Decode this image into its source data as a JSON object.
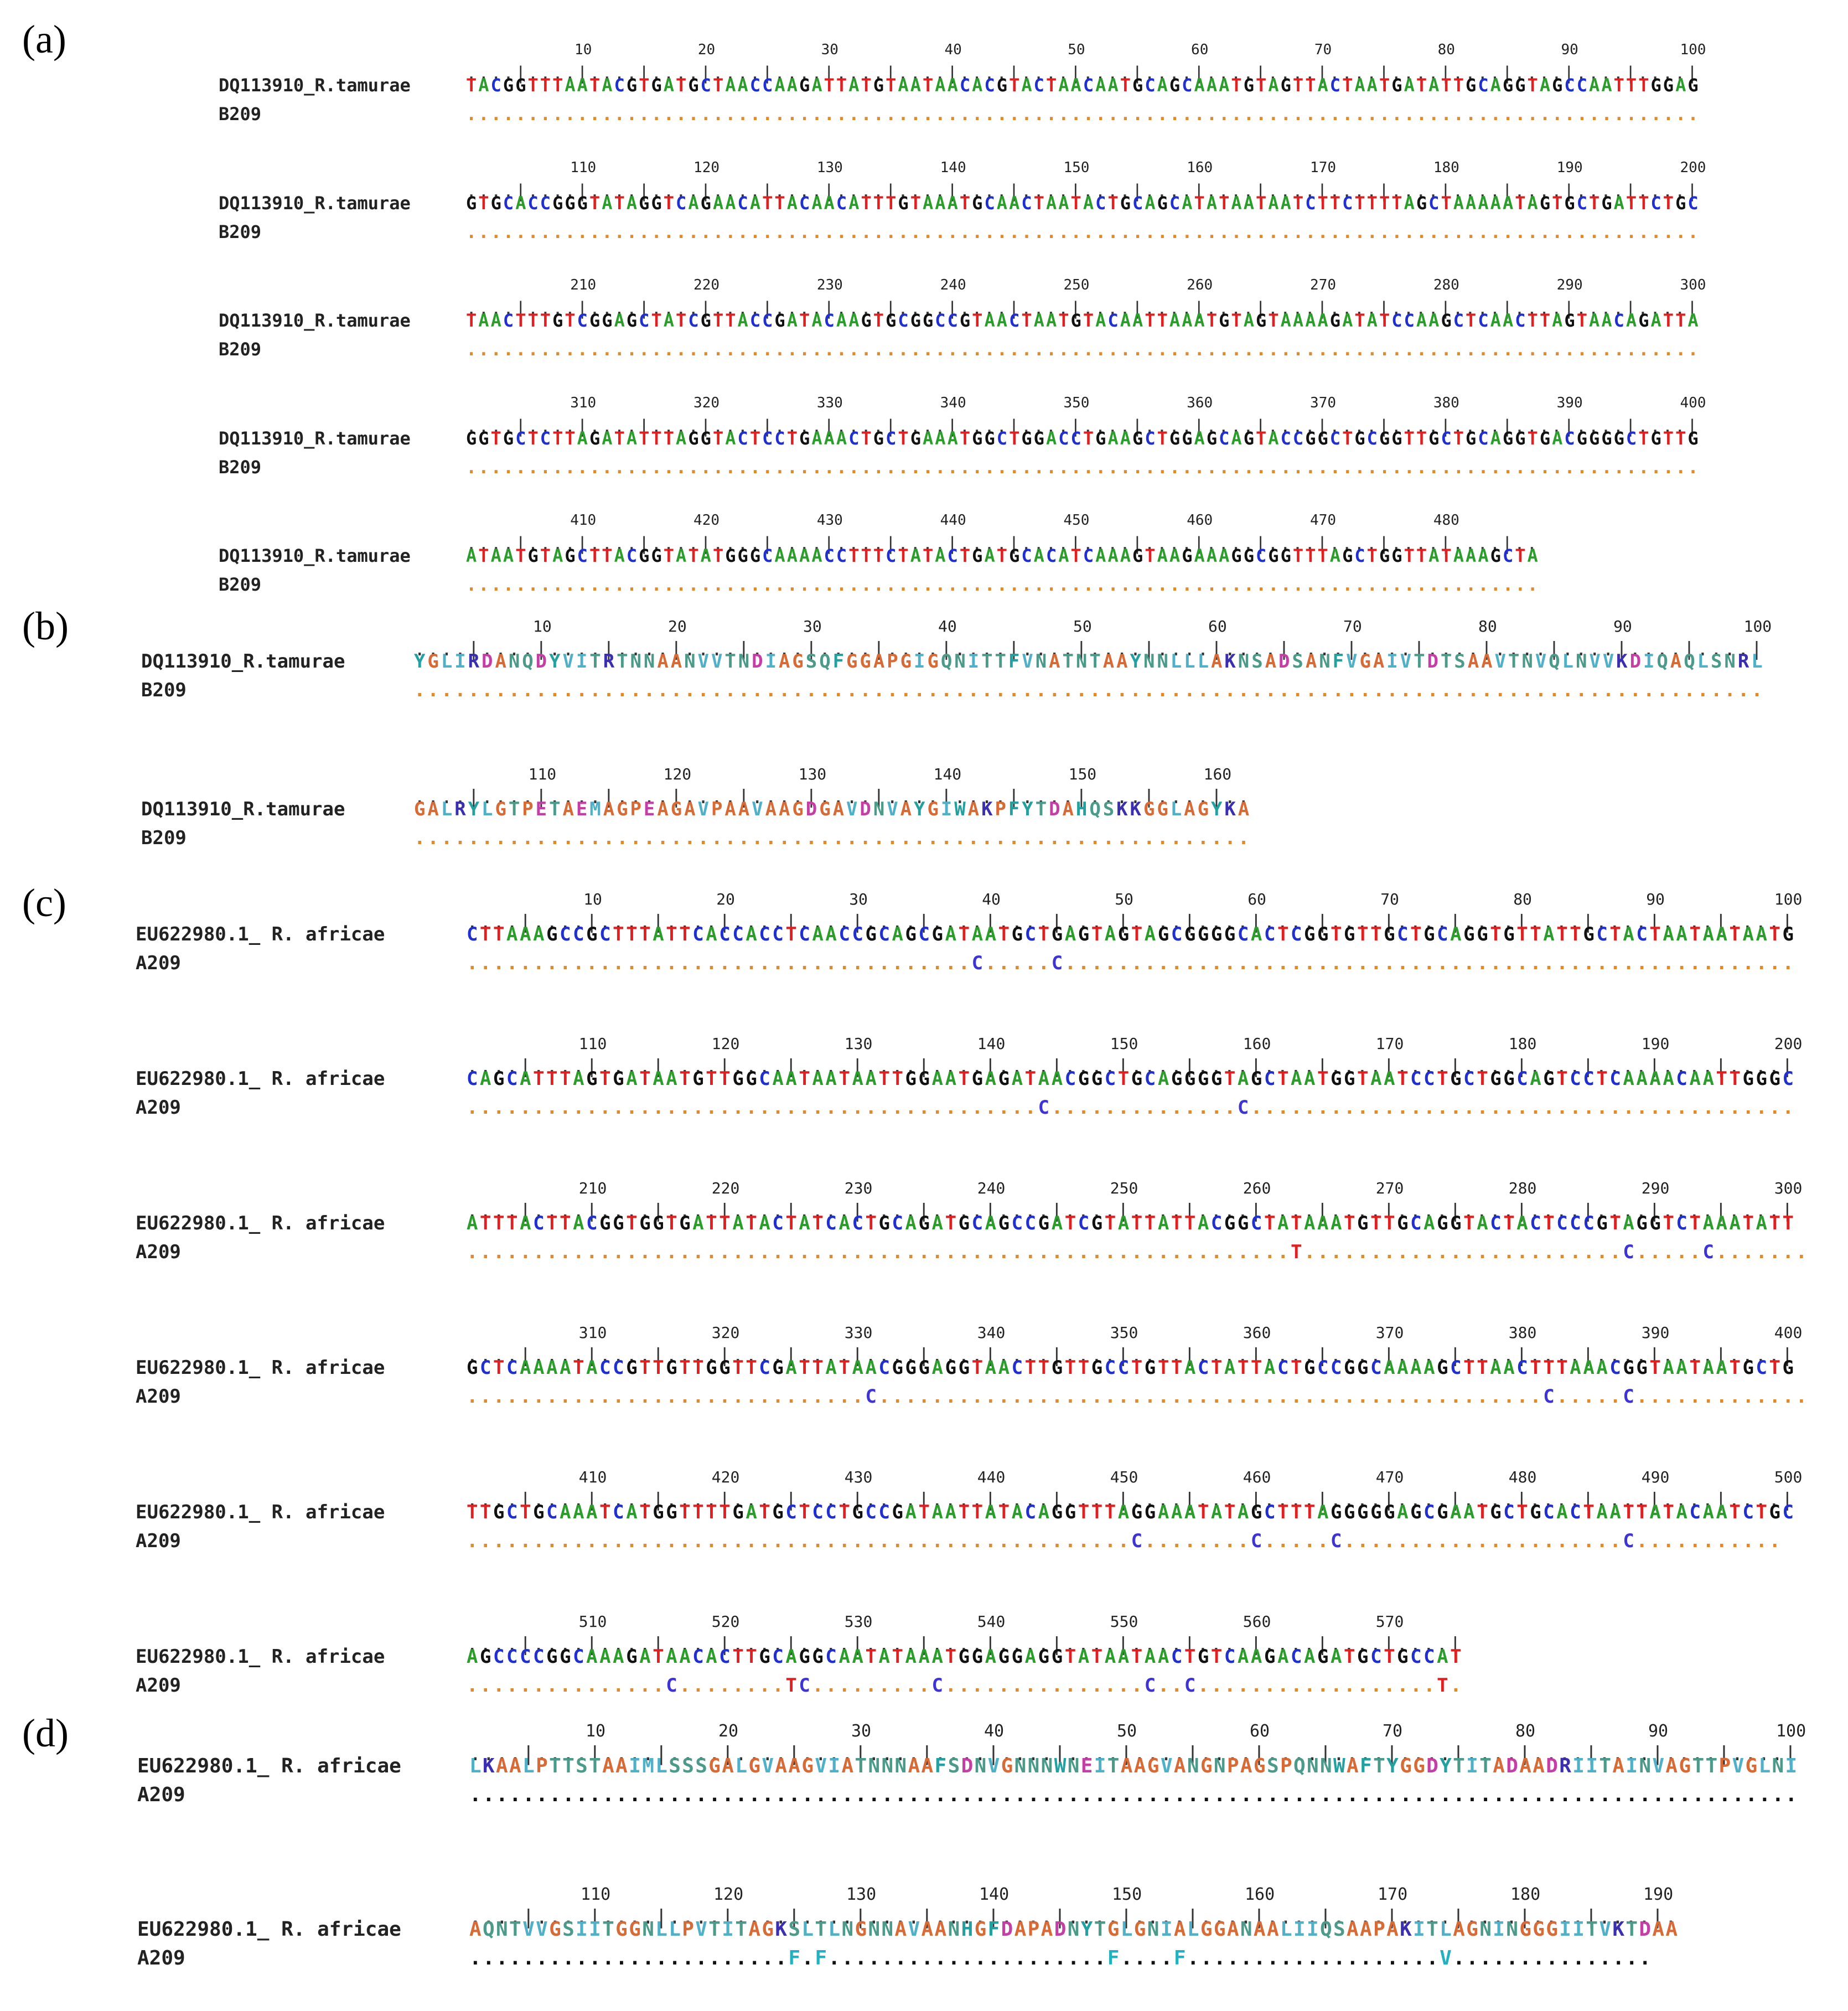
{
  "panels": [
    {
      "label": "(a)",
      "letter": "a",
      "name1": "DQ113910_R.tamurae",
      "name2": "B209",
      "rows": [
        {
          "ruler": [
            "10",
            "20",
            "30",
            "40",
            "50",
            "60",
            "70",
            "80",
            "90",
            "100"
          ],
          "seq": "TACGGTTTAATACGTGATGCTAACCAAGATTATGTAATAACACGTACTAACAATGCAGCAAATGTAGTTACTAATGATATTGCAGGTAGCCAATTTGGAG"
        },
        {
          "ruler": [
            "110",
            "120",
            "130",
            "140",
            "150",
            "160",
            "170",
            "180",
            "190",
            "200"
          ],
          "seq": "GTGCACCGGGTATAGGTCAGAACATTACAACATTTGTAAATGCAACTAATACTGCAGCATATAATAATCTTCTTTTAGCTAAAAATAGTGCTGATTCTGC"
        },
        {
          "ruler": [
            "210",
            "220",
            "230",
            "240",
            "250",
            "260",
            "270",
            "280",
            "290",
            "300"
          ],
          "seq": "TAACTTTGTCGGAGCTATCGTTACCGATACAAGTGCGGCCGTAACTAATGTACAATTAAATGTAGTAAAAGATATCCAAGCTCAACTTAGTAACAGATTA"
        },
        {
          "ruler": [
            "310",
            "320",
            "330",
            "340",
            "350",
            "360",
            "370",
            "380",
            "390",
            "400"
          ],
          "seq": "GGTGCTCTTAGATATTTAGGTACTCCTGAAACTGCTGAAATGGCTGGACCTGAAGCTGGAGCAGTACCGGCTGCGGTTGCTGCAGGTGACGGGGCTGTTG"
        },
        {
          "ruler": [
            "410",
            "420",
            "430",
            "440",
            "450",
            "460",
            "470",
            "480"
          ],
          "seq": "ATAATGTAGCTTACGGTATATGGGCAAAACCTTTCTATACTGATGCACATCAAAGTAAGAAAGGCGGTTTAGCTGGTTATAAAGCTA"
        }
      ]
    },
    {
      "label": "(b)",
      "letter": "b",
      "name1": "DQ113910_R.tamurae",
      "name2": "B209",
      "rows": [
        {
          "ruler": [
            "10",
            "20",
            "30",
            "40",
            "50",
            "60",
            "70",
            "80",
            "90",
            "100"
          ],
          "seq": "YGLIRDANQDYVITRTNNAANVVTNDIAGSQFGGAPGIGQNITTFVNATNTAAYNNLLLAKNSADSANFVGAIVTDTSAAVTNVQLNVVKDIQAQLSNRL"
        },
        {
          "ruler": [
            "110",
            "120",
            "130",
            "140",
            "150",
            "160"
          ],
          "seq": "GALRYLGTPETAEMAGPEAGAVPAAVAAGDGAVDNVAYGIWAKPFYTDAHQSKKGGLAGYKA"
        }
      ]
    },
    {
      "label": "(c)",
      "letter": "c",
      "name1": "EU622980.1_ R. africae",
      "name2": "A209",
      "rows": [
        {
          "ruler": [
            "10",
            "20",
            "30",
            "40",
            "50",
            "60",
            "70",
            "80",
            "90",
            "100"
          ],
          "seq": "CTTAAAGCCGCTTTATTCACCACCTCAACCGCAGCGATAATGCTGAGTAGTAGCGGGGCACTCGGTGTTGCTGCAGGTGTTATTGCTACTAATAATAATG",
          "var": "......................................C.....C......................................................."
        },
        {
          "ruler": [
            "110",
            "120",
            "130",
            "140",
            "150",
            "160",
            "170",
            "180",
            "190",
            "200"
          ],
          "seq": "CAGCATTTAGTGATAATGTTGGCAATAATAATTGGAATGAGATAACGGCTGCAGGGGTAGCTAATGGTAATCCTGCTGGCAGTCCTCAAAACAATTGGGC",
          "var": "...........................................C..............C........................................."
        },
        {
          "ruler": [
            "210",
            "220",
            "230",
            "240",
            "250",
            "260",
            "270",
            "280",
            "290",
            "300"
          ],
          "seq": "ATTTACTTACGGTGGTGATTATACTATCACTGCAGATGCAGCCGATCGTATTATTACGGCTATAAATGTTGCAGGTACTACTCCCGTAGGTCTAAATATT",
          "var": "..............................................................T........................C.....C......."
        },
        {
          "ruler": [
            "310",
            "320",
            "330",
            "340",
            "350",
            "360",
            "370",
            "380",
            "390",
            "400"
          ],
          "seq": "GCTCAAAATACCGTTGTTGGTTCGATTATAACGGGAGGTAACTTGTTGCCTGTTACTATTACTGCCGGCAAAAGCTTAACTTTAAACGGTAATAATGCTG",
          "var": "..............................C..................................................C.....C............."
        },
        {
          "ruler": [
            "410",
            "420",
            "430",
            "440",
            "450",
            "460",
            "470",
            "480",
            "490",
            "500"
          ],
          "seq": "TTGCTGCAAATCATGGTTTTGATGCTCCTGCCGATAATTATACAGGTTTAGGAAATATAGCTTTAGGGGGAGCGAATGCTGCACTAATTATACAATCTGC",
          "var": "..................................................C........C.....C.....................C..........."
        },
        {
          "ruler": [
            "510",
            "520",
            "530",
            "540",
            "550",
            "560",
            "570"
          ],
          "seq": "AGCCCCGGCAAAGATAACACTTGCAGGCAATATAAATGGAGGAGGTATAATAACTGTCAAGACAGATGCTGCCAT",
          "var": "...............C........TC.........C...............C..C..................T."
        }
      ]
    },
    {
      "label": "(d)",
      "letter": "d",
      "name1": "EU622980.1_ R. africae",
      "name2": "A209",
      "rows": [
        {
          "ruler": [
            "10",
            "20",
            "30",
            "40",
            "50",
            "60",
            "70",
            "80",
            "90",
            "100"
          ],
          "seq": "LKAALPTTSTAAIMLSSSGALGVAAGVIATNNNAAFSDNVGNNNWNEITAAGVANGNPAGSPQNNWAFTYGGDYTITADAADRIITAINVAGTTPVGLNI",
          "var": "...................................................................................................."
        },
        {
          "ruler": [
            "110",
            "120",
            "130",
            "140",
            "150",
            "160",
            "170",
            "180",
            "190"
          ],
          "seq": "AQNTVVGSIITGGNLLPVTITAGKSLTLNGNNAVAANHGFDAPADNYTGLGNIALGGANAALIIQSAAPAKITLAGNINGGGIITVKTDAA",
          "var": "........................F.F.....................F....F...................V..............."
        }
      ]
    }
  ]
}
